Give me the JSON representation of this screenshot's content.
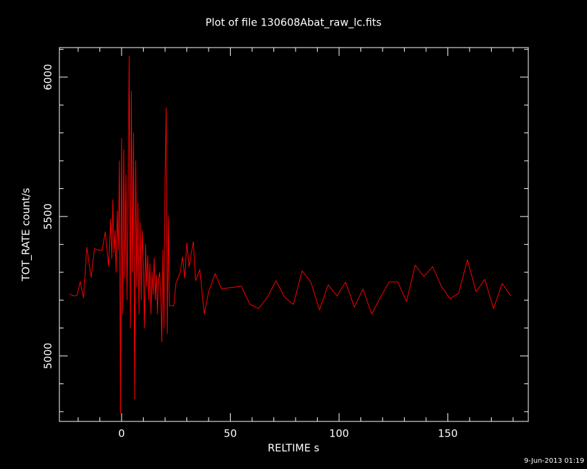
{
  "chart_data": {
    "type": "line",
    "title": "Plot of file 130608Abat_raw_lc.fits",
    "x_label": "RELTIME  s",
    "y_label": "TOT_RATE  count/s",
    "timestamp": "9-Jun-2013 01:19",
    "color": "#ff0000",
    "xlim": [
      -28.6,
      187
    ],
    "ylim": [
      4765,
      6106
    ],
    "xticks": [
      0,
      50,
      100,
      150
    ],
    "yticks": [
      5000,
      5500,
      6000
    ],
    "xticks_minor": [
      -20,
      -10,
      10,
      20,
      30,
      40,
      60,
      70,
      80,
      90,
      110,
      120,
      130,
      140,
      160,
      170,
      180
    ],
    "yticks_minor": [
      4800,
      4900,
      5100,
      5200,
      5300,
      5400,
      5600,
      5700,
      5800,
      5900,
      6100
    ],
    "x": [
      -24,
      -22,
      -20.5,
      -19,
      -17.5,
      -16,
      -14,
      -12.5,
      -11,
      -9,
      -7.5,
      -6,
      -5,
      -4.5,
      -4,
      -3.5,
      -3,
      -2.5,
      -2,
      -1.5,
      -1,
      -0.5,
      0,
      0.5,
      1,
      1.5,
      2,
      2.5,
      3,
      3.5,
      4,
      4.5,
      5,
      5.5,
      6,
      6.5,
      7,
      7.5,
      8,
      8.5,
      9,
      9.5,
      10,
      10.5,
      11,
      11.5,
      12,
      12.5,
      13,
      13.5,
      14,
      14.5,
      15,
      15.5,
      16,
      16.5,
      17,
      17.5,
      18,
      18.5,
      19,
      19.5,
      20,
      20.5,
      21,
      21.5,
      22,
      24,
      25,
      27,
      28,
      29,
      30,
      31,
      33,
      34,
      36,
      38,
      40,
      43,
      46,
      50,
      55,
      59,
      63,
      67,
      71,
      75,
      79,
      83,
      87,
      91,
      95,
      99,
      103,
      107,
      111,
      115,
      119,
      123,
      127,
      131,
      135,
      139,
      143,
      147,
      151,
      155,
      159,
      163,
      167,
      171,
      175,
      179
    ],
    "values": [
      5222,
      5215,
      5217,
      5267,
      5208,
      5390,
      5282,
      5385,
      5380,
      5378,
      5445,
      5322,
      5490,
      5350,
      5560,
      5370,
      5450,
      5300,
      5520,
      5380,
      5700,
      4795,
      5780,
      5150,
      5740,
      5280,
      5650,
      5200,
      5600,
      6075,
      5100,
      5950,
      5300,
      5800,
      4845,
      5700,
      5250,
      5550,
      5150,
      5480,
      5200,
      5450,
      5320,
      5100,
      5400,
      5250,
      5360,
      5200,
      5330,
      5150,
      5300,
      5220,
      5350,
      5200,
      5290,
      5150,
      5280,
      5300,
      5220,
      5050,
      5380,
      5100,
      5650,
      5890,
      5080,
      5500,
      5180,
      5180,
      5260,
      5300,
      5355,
      5280,
      5405,
      5320,
      5410,
      5270,
      5310,
      5150,
      5230,
      5295,
      5240,
      5245,
      5250,
      5185,
      5170,
      5210,
      5270,
      5210,
      5185,
      5305,
      5265,
      5165,
      5255,
      5215,
      5265,
      5175,
      5240,
      5150,
      5210,
      5265,
      5265,
      5195,
      5325,
      5285,
      5320,
      5250,
      5205,
      5225,
      5345,
      5230,
      5275,
      5170,
      5260,
      5215
    ]
  }
}
